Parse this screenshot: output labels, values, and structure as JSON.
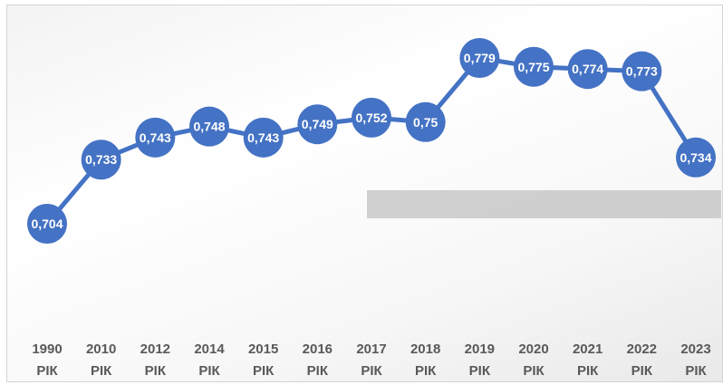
{
  "chart_data": {
    "type": "line",
    "title": "",
    "xlabel": "",
    "ylabel": "",
    "categories": [
      [
        "1990",
        "РІК"
      ],
      [
        "2010",
        "РІК"
      ],
      [
        "2012",
        "РІК"
      ],
      [
        "2014",
        "РІК"
      ],
      [
        "2015",
        "РІК"
      ],
      [
        "2016",
        "РІК"
      ],
      [
        "2017",
        "РІК"
      ],
      [
        "2018",
        "РІК"
      ],
      [
        "2019",
        "РІК"
      ],
      [
        "2020",
        "РІК"
      ],
      [
        "2021",
        "РІК"
      ],
      [
        "2022",
        "РІК"
      ],
      [
        "2023",
        "РІК"
      ]
    ],
    "series": [
      {
        "values": [
          0.704,
          0.733,
          0.743,
          0.748,
          0.743,
          0.749,
          0.752,
          0.75,
          0.779,
          0.775,
          0.774,
          0.773,
          0.734
        ],
        "labels": [
          "0,704",
          "0,733",
          "0,743",
          "0,748",
          "0,743",
          "0,749",
          "0,752",
          "0,75",
          "0,779",
          "0,775",
          "0,774",
          "0,773",
          "0,734"
        ],
        "color": "#4472C4"
      }
    ],
    "ylim": [
      0.69,
      0.79
    ],
    "grid": false,
    "legend": "none"
  },
  "colors": {
    "series": "#4472C4",
    "label_text": "#ffffff",
    "tick_text": "#595959",
    "overlay_bar": "#c8c8c8"
  }
}
